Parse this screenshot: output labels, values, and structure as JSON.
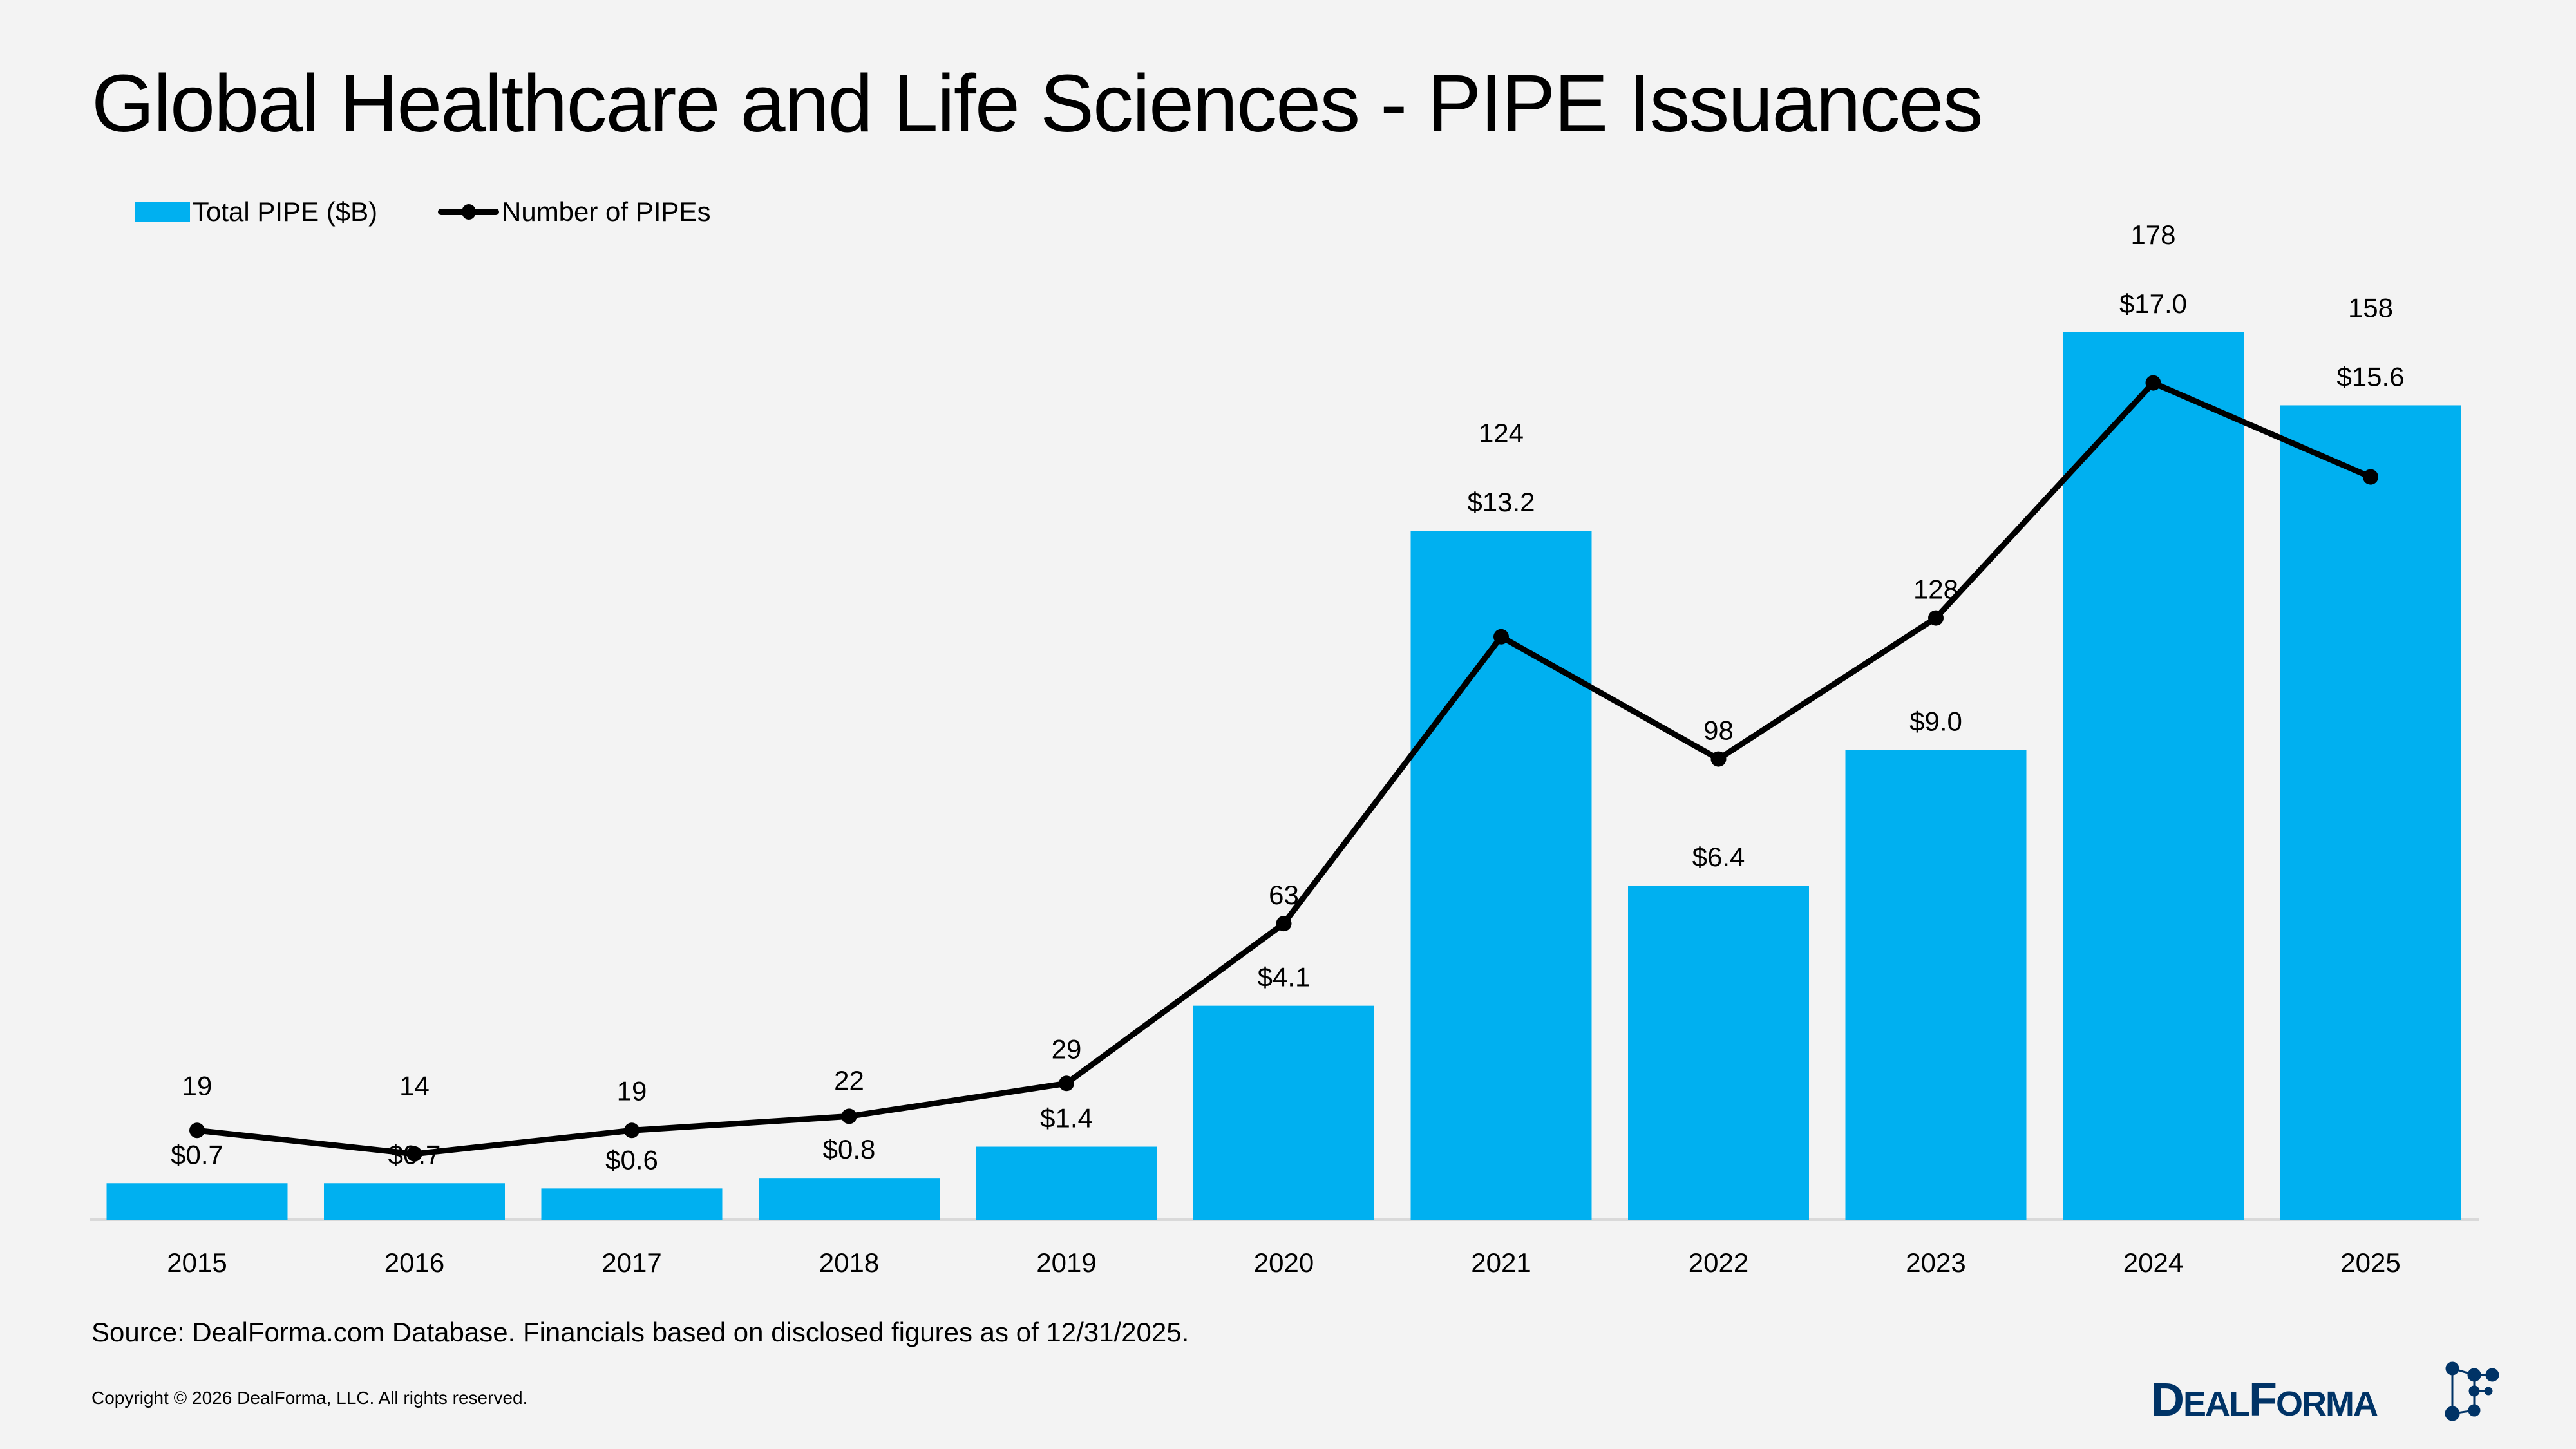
{
  "title": "Global Healthcare and Life Sciences - PIPE Issuances",
  "footer": {
    "source": "Source: DealForma.com Database. Financials based on disclosed figures as of 12/31/2025.",
    "copyright": "Copyright © 2026 DealForma, LLC. All rights reserved.",
    "logo_text": "DealForma"
  },
  "colors": {
    "bar": "#00b0f0",
    "line": "#000000",
    "logo": "#003366",
    "background": "#f3f3f3"
  },
  "chart_data": {
    "type": "bar+line",
    "title": "Global Healthcare and Life Sciences - PIPE Issuances",
    "categories": [
      "2015",
      "2016",
      "2017",
      "2018",
      "2019",
      "2020",
      "2021",
      "2022",
      "2023",
      "2024",
      "2025"
    ],
    "legend_placement": "top-left",
    "grid": false,
    "series": [
      {
        "name": "Total PIPE ($B)",
        "type": "bar",
        "values": [
          0.7,
          0.7,
          0.6,
          0.8,
          1.4,
          4.1,
          13.2,
          6.4,
          9.0,
          17.0,
          15.6
        ],
        "labels": [
          "$0.7",
          "$0.7",
          "$0.6",
          "$0.8",
          "$1.4",
          "$4.1",
          "$13.2",
          "$6.4",
          "$9.0",
          "$17.0",
          "$15.6"
        ]
      },
      {
        "name": "Number of PIPEs",
        "type": "line",
        "values": [
          19,
          14,
          19,
          22,
          29,
          63,
          124,
          98,
          128,
          178,
          158
        ],
        "labels": [
          "19",
          "14",
          "19",
          "22",
          "29",
          "63",
          "124",
          "98",
          "128",
          "178",
          "158"
        ]
      }
    ]
  }
}
